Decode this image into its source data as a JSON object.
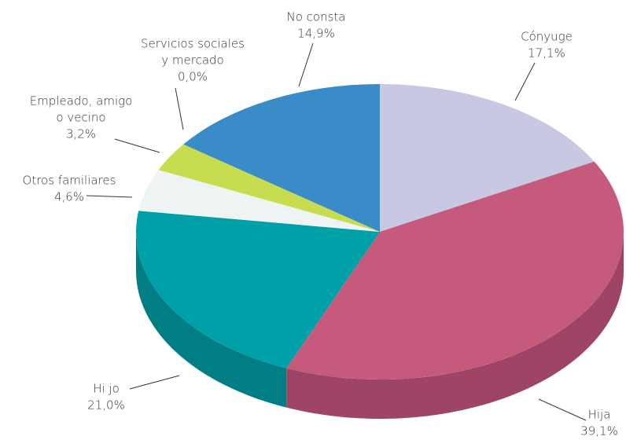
{
  "chart_data": {
    "type": "pie",
    "categories": [
      [
        "Cónyuge"
      ],
      [
        "Hija"
      ],
      [
        "Hi jo"
      ],
      [
        "Otros familiares"
      ],
      [
        "Empleado, amigo",
        "o vecino"
      ],
      [
        "Servicios sociales",
        "y mercado"
      ],
      [
        "No consta"
      ]
    ],
    "values": [
      17.1,
      39.1,
      21.0,
      4.6,
      3.2,
      0.0,
      14.9
    ],
    "value_labels": [
      "17,1%",
      "39,1%",
      "21,0%",
      "4,6%",
      "3,2%",
      "0,0%",
      "14,9%"
    ],
    "colors": [
      "#c8c8e2",
      "#c55a7c",
      "#00a0a8",
      "#eef4f4",
      "#c8dc50",
      "#8a8a8a",
      "#3a8cc8"
    ],
    "side_colors": [
      "#a0a0c0",
      "#9e4466",
      "#007e84",
      "#c0cccc",
      "#a0b040",
      "#6a6a6a",
      "#2a6c9c"
    ]
  }
}
